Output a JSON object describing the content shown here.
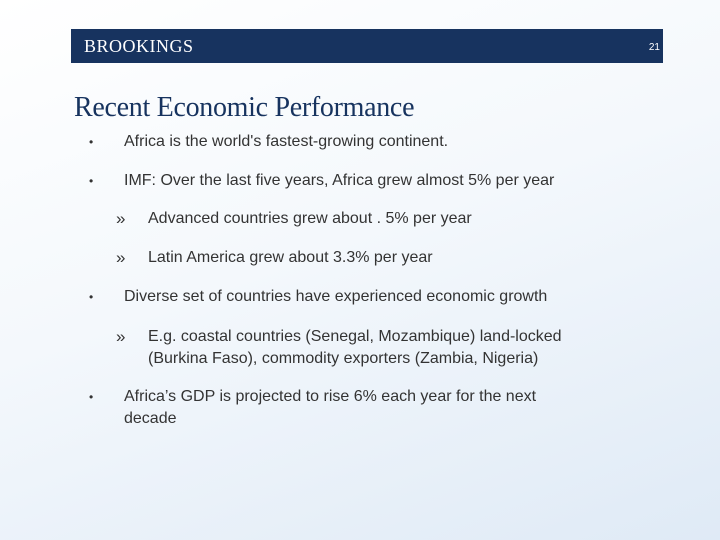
{
  "header": {
    "logo_text": "BROOKINGS",
    "page_number": "21",
    "band_color": "#17335f"
  },
  "slide": {
    "title": "Recent Economic Performance",
    "bullets": [
      {
        "marker": "•",
        "text": "Africa is the world's fastest-growing continent."
      },
      {
        "marker": "•",
        "text": "IMF: Over the last five years, Africa grew almost 5% per year"
      },
      {
        "marker": "»",
        "text": "Advanced countries grew about . 5% per year"
      },
      {
        "marker": "»",
        "text": "Latin America grew about 3.3% per year"
      },
      {
        "marker": "•",
        "text": "Diverse set of countries have experienced economic growth"
      },
      {
        "marker": "»",
        "line1": "E.g. coastal countries (Senegal, Mozambique) land-locked",
        "line2": "(Burkina Faso), commodity exporters (Zambia, Nigeria)"
      },
      {
        "marker": "•",
        "line1": "Africa’s GDP is projected to rise 6% each year for the next",
        "line2": "decade"
      }
    ]
  }
}
